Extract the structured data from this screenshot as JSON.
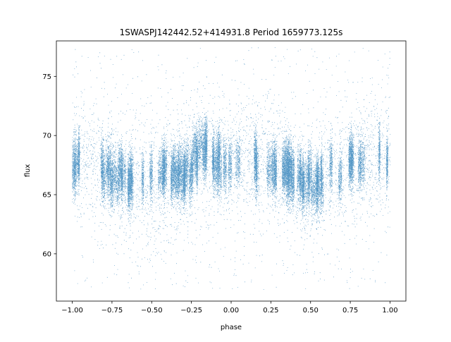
{
  "chart_data": {
    "type": "scatter",
    "title": "1SWASPJ142442.52+414931.8 Period 1659773.125s",
    "xlabel": "phase",
    "ylabel": "flux",
    "xlim": [
      -1.1,
      1.1
    ],
    "ylim": [
      56.0,
      78.0
    ],
    "xticks": [
      -1.0,
      -0.75,
      -0.5,
      -0.25,
      0.0,
      0.25,
      0.5,
      0.75,
      1.0
    ],
    "xtick_labels": [
      "−1.00",
      "−0.75",
      "−0.50",
      "−0.25",
      "0.00",
      "0.25",
      "0.50",
      "0.75",
      "1.00"
    ],
    "yticks": [
      60,
      65,
      70,
      75
    ],
    "ytick_labels": [
      "60",
      "65",
      "70",
      "75"
    ],
    "grid": false,
    "legend": "none",
    "marker_color": "#1f77b4",
    "series": [
      {
        "trend_phase": [
          -1.0,
          -0.9,
          -0.8,
          -0.7,
          -0.6,
          -0.5,
          -0.4,
          -0.3,
          -0.2,
          -0.1,
          0.0,
          0.1,
          0.2,
          0.3,
          0.4,
          0.5,
          0.6,
          0.7,
          0.8,
          0.9,
          1.0
        ],
        "trend_flux": [
          68.0,
          68.3,
          67.2,
          66.2,
          65.8,
          66.0,
          66.6,
          66.6,
          68.4,
          68.2,
          67.3,
          68.0,
          68.2,
          67.3,
          66.2,
          66.0,
          66.6,
          67.1,
          68.0,
          68.0,
          68.4
        ],
        "scatter_low": 57.0,
        "scatter_high": 77.5,
        "point_count": 30000
      }
    ]
  }
}
